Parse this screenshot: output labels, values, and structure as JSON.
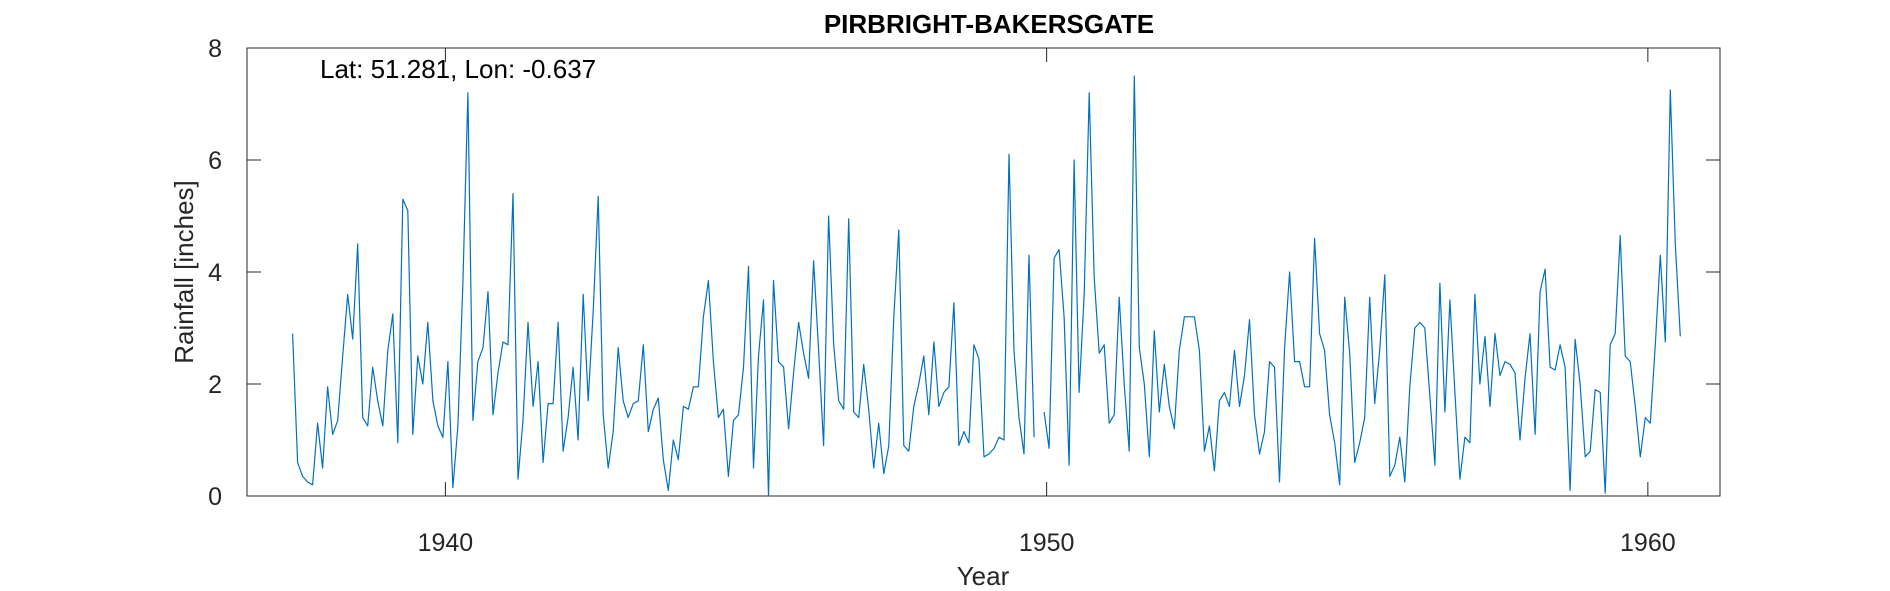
{
  "chart_data": {
    "type": "line",
    "title": "PIRBRIGHT-BAKERSGATE",
    "xlabel": "Year",
    "ylabel": "Rainfall [inches]",
    "annotation": "Lat: 51.281, Lon: -0.637",
    "xlim": [
      1936.7,
      1961.2
    ],
    "ylim": [
      0,
      8
    ],
    "xticks": [
      1940,
      1950,
      1960
    ],
    "yticks": [
      0,
      2,
      4,
      6,
      8
    ],
    "grid": false,
    "box": true,
    "line_color": "#0072BD",
    "series": [
      {
        "x_start": 1937.458,
        "x_step": 0.08333,
        "values": [
          2.9,
          0.6,
          0.35,
          0.25,
          0.2,
          1.3,
          0.5,
          1.95,
          1.1,
          1.35,
          2.5,
          3.6,
          2.8,
          4.5,
          1.4,
          1.25,
          2.3,
          1.7,
          1.25,
          2.6,
          3.25,
          0.95,
          5.3,
          5.1,
          1.1,
          2.5,
          2.0,
          3.1,
          1.7,
          1.25,
          1.05,
          2.4,
          0.15,
          1.25,
          3.8,
          7.2,
          1.35,
          2.4,
          2.65,
          3.65,
          1.45,
          2.2,
          2.75,
          2.7,
          5.4,
          0.3,
          1.35,
          3.1,
          1.6,
          2.4,
          0.6,
          1.65,
          1.65,
          3.1,
          0.8,
          1.4,
          2.3,
          1.0,
          3.6,
          1.7,
          3.3,
          5.35,
          1.45,
          0.5,
          1.15,
          2.65,
          1.7,
          1.4,
          1.65,
          1.7,
          2.7,
          1.15,
          1.55,
          1.75,
          0.65,
          0.1,
          1.0,
          0.65,
          1.6,
          1.55,
          1.95,
          1.95,
          3.2,
          3.85,
          2.4,
          1.4,
          1.55,
          0.35,
          1.35,
          1.45,
          2.3,
          4.1,
          0.5,
          2.5,
          3.5,
          0.0,
          3.85,
          2.4,
          2.3,
          1.2,
          2.2,
          3.1,
          2.55,
          2.1,
          4.2,
          2.6,
          0.9,
          5.0,
          2.7,
          1.7,
          1.55,
          4.95,
          1.5,
          1.4,
          2.35,
          1.55,
          0.5,
          1.3,
          0.4,
          0.9,
          3.2,
          4.75,
          0.9,
          0.8,
          1.6,
          2.0,
          2.5,
          1.45,
          2.75,
          1.6,
          1.85,
          1.95,
          3.45,
          0.9,
          1.15,
          0.95,
          2.7,
          2.45,
          0.7,
          0.75,
          0.85,
          1.05,
          1.0,
          6.1,
          2.6,
          1.4,
          0.75,
          4.3,
          1.05,
          null,
          1.5,
          0.85,
          4.25,
          4.4,
          3.2,
          0.55,
          6.0,
          1.85,
          3.6,
          7.2,
          3.9,
          2.55,
          2.7,
          1.3,
          1.45,
          3.55,
          2.0,
          0.8,
          7.5,
          2.65,
          2.0,
          0.7,
          2.95,
          1.5,
          2.35,
          1.6,
          1.2,
          2.6,
          3.2,
          3.2,
          3.2,
          2.6,
          0.8,
          1.25,
          0.45,
          1.7,
          1.85,
          1.6,
          2.6,
          1.6,
          2.15,
          3.15,
          1.45,
          0.75,
          1.15,
          2.4,
          2.3,
          0.25,
          2.65,
          4.0,
          2.4,
          2.4,
          1.95,
          1.95,
          4.6,
          2.9,
          2.6,
          1.45,
          0.95,
          0.2,
          3.55,
          2.55,
          0.6,
          0.95,
          1.4,
          3.55,
          1.65,
          2.6,
          3.95,
          0.35,
          0.55,
          1.05,
          0.25,
          1.95,
          3.0,
          3.1,
          3.0,
          1.8,
          0.55,
          3.8,
          1.5,
          3.5,
          1.85,
          0.3,
          1.05,
          0.95,
          3.6,
          2.0,
          2.85,
          1.6,
          2.9,
          2.15,
          2.4,
          2.35,
          2.2,
          1.0,
          2.1,
          2.9,
          1.1,
          3.65,
          4.05,
          2.3,
          2.25,
          2.7,
          2.3,
          0.1,
          2.8,
          2.0,
          0.7,
          0.8,
          1.9,
          1.85,
          0.05,
          2.7,
          2.9,
          4.65,
          2.5,
          2.4,
          1.6,
          0.7,
          1.4,
          1.3,
          2.7,
          4.3,
          2.75,
          7.25,
          4.5,
          2.85
        ]
      }
    ]
  }
}
